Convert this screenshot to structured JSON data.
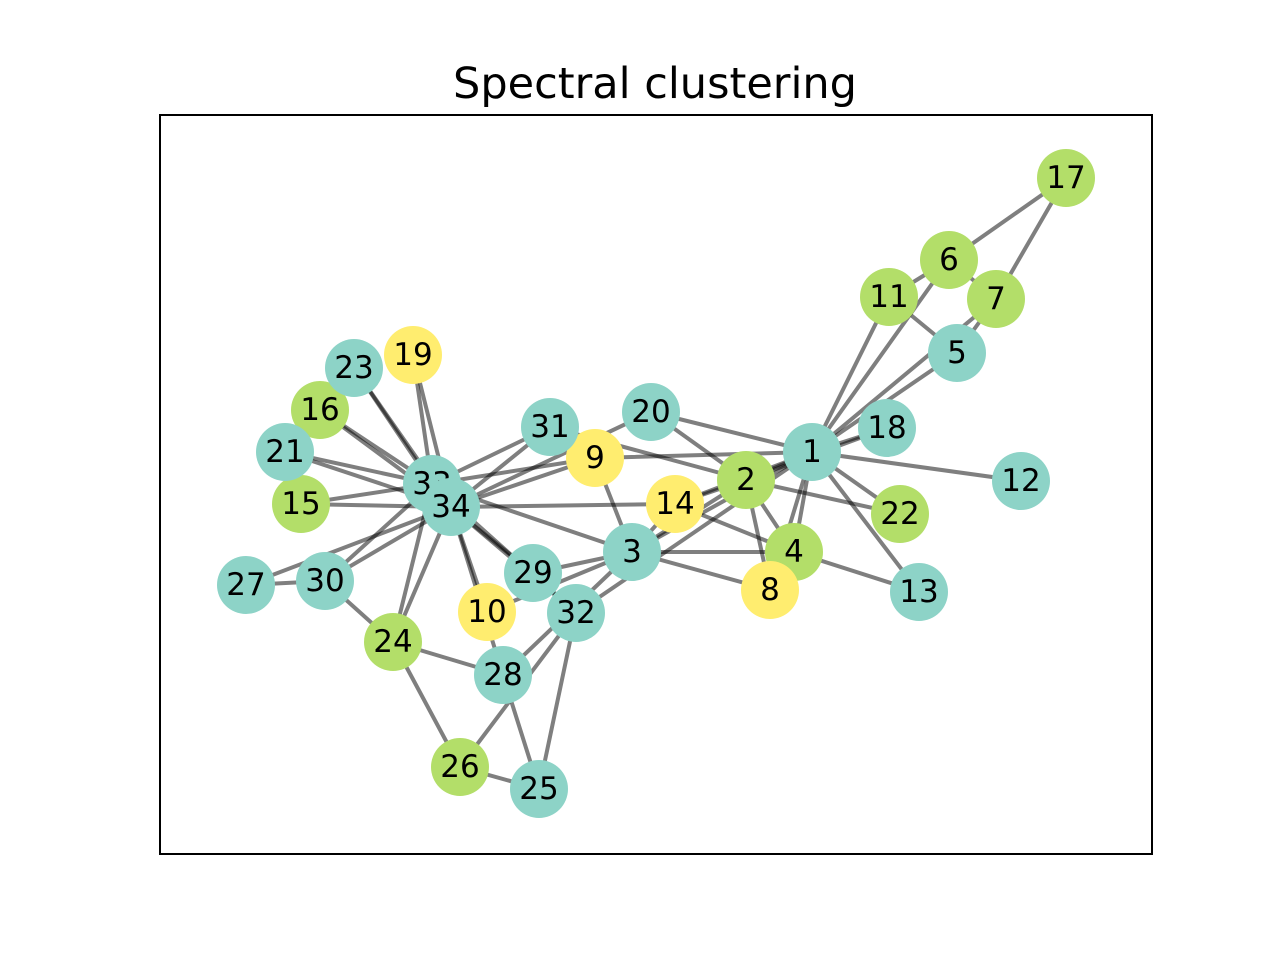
{
  "title": "Spectral clustering",
  "cluster_colors": {
    "a": "#8dd3c7",
    "b": "#b3de69",
    "c": "#ffed6f"
  },
  "edge_color": "#7f7f7f",
  "nodes": [
    {
      "id": "1",
      "cluster": "a"
    },
    {
      "id": "2",
      "cluster": "b"
    },
    {
      "id": "3",
      "cluster": "a"
    },
    {
      "id": "4",
      "cluster": "b"
    },
    {
      "id": "5",
      "cluster": "a"
    },
    {
      "id": "6",
      "cluster": "b"
    },
    {
      "id": "7",
      "cluster": "b"
    },
    {
      "id": "8",
      "cluster": "c"
    },
    {
      "id": "9",
      "cluster": "c"
    },
    {
      "id": "10",
      "cluster": "c"
    },
    {
      "id": "11",
      "cluster": "b"
    },
    {
      "id": "12",
      "cluster": "a"
    },
    {
      "id": "13",
      "cluster": "a"
    },
    {
      "id": "14",
      "cluster": "c"
    },
    {
      "id": "15",
      "cluster": "b"
    },
    {
      "id": "16",
      "cluster": "b"
    },
    {
      "id": "17",
      "cluster": "b"
    },
    {
      "id": "18",
      "cluster": "a"
    },
    {
      "id": "19",
      "cluster": "c"
    },
    {
      "id": "20",
      "cluster": "a"
    },
    {
      "id": "21",
      "cluster": "a"
    },
    {
      "id": "22",
      "cluster": "b"
    },
    {
      "id": "23",
      "cluster": "a"
    },
    {
      "id": "24",
      "cluster": "b"
    },
    {
      "id": "25",
      "cluster": "a"
    },
    {
      "id": "26",
      "cluster": "b"
    },
    {
      "id": "27",
      "cluster": "a"
    },
    {
      "id": "28",
      "cluster": "a"
    },
    {
      "id": "29",
      "cluster": "a"
    },
    {
      "id": "30",
      "cluster": "a"
    },
    {
      "id": "31",
      "cluster": "a"
    },
    {
      "id": "32",
      "cluster": "a"
    },
    {
      "id": "33",
      "cluster": "a"
    },
    {
      "id": "34",
      "cluster": "a"
    }
  ],
  "edges": [
    [
      "1",
      "2"
    ],
    [
      "1",
      "3"
    ],
    [
      "1",
      "4"
    ],
    [
      "1",
      "5"
    ],
    [
      "1",
      "6"
    ],
    [
      "1",
      "7"
    ],
    [
      "1",
      "8"
    ],
    [
      "1",
      "9"
    ],
    [
      "1",
      "11"
    ],
    [
      "1",
      "12"
    ],
    [
      "1",
      "13"
    ],
    [
      "1",
      "14"
    ],
    [
      "1",
      "18"
    ],
    [
      "1",
      "20"
    ],
    [
      "1",
      "22"
    ],
    [
      "1",
      "32"
    ],
    [
      "2",
      "3"
    ],
    [
      "2",
      "4"
    ],
    [
      "2",
      "8"
    ],
    [
      "2",
      "14"
    ],
    [
      "2",
      "18"
    ],
    [
      "2",
      "20"
    ],
    [
      "2",
      "22"
    ],
    [
      "2",
      "31"
    ],
    [
      "3",
      "4"
    ],
    [
      "3",
      "8"
    ],
    [
      "3",
      "9"
    ],
    [
      "3",
      "10"
    ],
    [
      "3",
      "14"
    ],
    [
      "3",
      "28"
    ],
    [
      "3",
      "29"
    ],
    [
      "3",
      "33"
    ],
    [
      "4",
      "8"
    ],
    [
      "4",
      "13"
    ],
    [
      "4",
      "14"
    ],
    [
      "5",
      "7"
    ],
    [
      "5",
      "11"
    ],
    [
      "6",
      "7"
    ],
    [
      "6",
      "11"
    ],
    [
      "6",
      "17"
    ],
    [
      "7",
      "17"
    ],
    [
      "9",
      "31"
    ],
    [
      "9",
      "33"
    ],
    [
      "9",
      "34"
    ],
    [
      "10",
      "34"
    ],
    [
      "14",
      "34"
    ],
    [
      "15",
      "33"
    ],
    [
      "15",
      "34"
    ],
    [
      "16",
      "33"
    ],
    [
      "16",
      "34"
    ],
    [
      "19",
      "33"
    ],
    [
      "19",
      "34"
    ],
    [
      "20",
      "34"
    ],
    [
      "21",
      "33"
    ],
    [
      "21",
      "34"
    ],
    [
      "23",
      "33"
    ],
    [
      "23",
      "34"
    ],
    [
      "24",
      "26"
    ],
    [
      "24",
      "28"
    ],
    [
      "24",
      "30"
    ],
    [
      "24",
      "33"
    ],
    [
      "24",
      "34"
    ],
    [
      "25",
      "26"
    ],
    [
      "25",
      "28"
    ],
    [
      "25",
      "32"
    ],
    [
      "26",
      "32"
    ],
    [
      "27",
      "30"
    ],
    [
      "27",
      "34"
    ],
    [
      "28",
      "34"
    ],
    [
      "29",
      "32"
    ],
    [
      "29",
      "34"
    ],
    [
      "30",
      "33"
    ],
    [
      "30",
      "34"
    ],
    [
      "31",
      "33"
    ],
    [
      "31",
      "34"
    ],
    [
      "32",
      "33"
    ],
    [
      "32",
      "34"
    ],
    [
      "33",
      "34"
    ]
  ]
}
